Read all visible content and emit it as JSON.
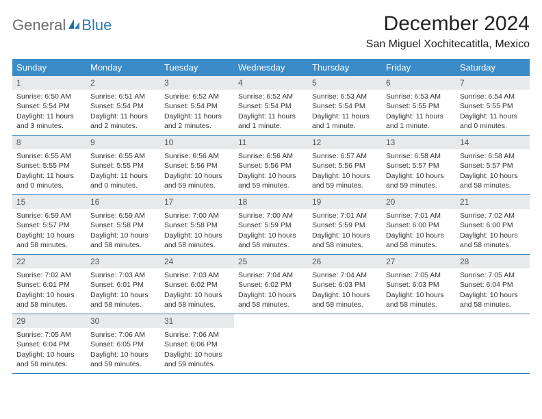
{
  "logo": {
    "part1": "General",
    "part2": "Blue"
  },
  "title": "December 2024",
  "location": "San Miguel Xochitecatitla, Mexico",
  "colors": {
    "headerBar": "#3b8bc9",
    "weekBorder": "#2b7bbd",
    "dayNumBg": "#e8e9ea",
    "logoBlue": "#2b7bbd",
    "logoGray": "#6b6b6b"
  },
  "weekdays": [
    "Sunday",
    "Monday",
    "Tuesday",
    "Wednesday",
    "Thursday",
    "Friday",
    "Saturday"
  ],
  "weeks": [
    [
      {
        "n": "1",
        "sunrise": "6:50 AM",
        "sunset": "5:54 PM",
        "daylight": "11 hours and 3 minutes."
      },
      {
        "n": "2",
        "sunrise": "6:51 AM",
        "sunset": "5:54 PM",
        "daylight": "11 hours and 2 minutes."
      },
      {
        "n": "3",
        "sunrise": "6:52 AM",
        "sunset": "5:54 PM",
        "daylight": "11 hours and 2 minutes."
      },
      {
        "n": "4",
        "sunrise": "6:52 AM",
        "sunset": "5:54 PM",
        "daylight": "11 hours and 1 minute."
      },
      {
        "n": "5",
        "sunrise": "6:53 AM",
        "sunset": "5:54 PM",
        "daylight": "11 hours and 1 minute."
      },
      {
        "n": "6",
        "sunrise": "6:53 AM",
        "sunset": "5:55 PM",
        "daylight": "11 hours and 1 minute."
      },
      {
        "n": "7",
        "sunrise": "6:54 AM",
        "sunset": "5:55 PM",
        "daylight": "11 hours and 0 minutes."
      }
    ],
    [
      {
        "n": "8",
        "sunrise": "6:55 AM",
        "sunset": "5:55 PM",
        "daylight": "11 hours and 0 minutes."
      },
      {
        "n": "9",
        "sunrise": "6:55 AM",
        "sunset": "5:55 PM",
        "daylight": "11 hours and 0 minutes."
      },
      {
        "n": "10",
        "sunrise": "6:56 AM",
        "sunset": "5:56 PM",
        "daylight": "10 hours and 59 minutes."
      },
      {
        "n": "11",
        "sunrise": "6:56 AM",
        "sunset": "5:56 PM",
        "daylight": "10 hours and 59 minutes."
      },
      {
        "n": "12",
        "sunrise": "6:57 AM",
        "sunset": "5:56 PM",
        "daylight": "10 hours and 59 minutes."
      },
      {
        "n": "13",
        "sunrise": "6:58 AM",
        "sunset": "5:57 PM",
        "daylight": "10 hours and 59 minutes."
      },
      {
        "n": "14",
        "sunrise": "6:58 AM",
        "sunset": "5:57 PM",
        "daylight": "10 hours and 58 minutes."
      }
    ],
    [
      {
        "n": "15",
        "sunrise": "6:59 AM",
        "sunset": "5:57 PM",
        "daylight": "10 hours and 58 minutes."
      },
      {
        "n": "16",
        "sunrise": "6:59 AM",
        "sunset": "5:58 PM",
        "daylight": "10 hours and 58 minutes."
      },
      {
        "n": "17",
        "sunrise": "7:00 AM",
        "sunset": "5:58 PM",
        "daylight": "10 hours and 58 minutes."
      },
      {
        "n": "18",
        "sunrise": "7:00 AM",
        "sunset": "5:59 PM",
        "daylight": "10 hours and 58 minutes."
      },
      {
        "n": "19",
        "sunrise": "7:01 AM",
        "sunset": "5:59 PM",
        "daylight": "10 hours and 58 minutes."
      },
      {
        "n": "20",
        "sunrise": "7:01 AM",
        "sunset": "6:00 PM",
        "daylight": "10 hours and 58 minutes."
      },
      {
        "n": "21",
        "sunrise": "7:02 AM",
        "sunset": "6:00 PM",
        "daylight": "10 hours and 58 minutes."
      }
    ],
    [
      {
        "n": "22",
        "sunrise": "7:02 AM",
        "sunset": "6:01 PM",
        "daylight": "10 hours and 58 minutes."
      },
      {
        "n": "23",
        "sunrise": "7:03 AM",
        "sunset": "6:01 PM",
        "daylight": "10 hours and 58 minutes."
      },
      {
        "n": "24",
        "sunrise": "7:03 AM",
        "sunset": "6:02 PM",
        "daylight": "10 hours and 58 minutes."
      },
      {
        "n": "25",
        "sunrise": "7:04 AM",
        "sunset": "6:02 PM",
        "daylight": "10 hours and 58 minutes."
      },
      {
        "n": "26",
        "sunrise": "7:04 AM",
        "sunset": "6:03 PM",
        "daylight": "10 hours and 58 minutes."
      },
      {
        "n": "27",
        "sunrise": "7:05 AM",
        "sunset": "6:03 PM",
        "daylight": "10 hours and 58 minutes."
      },
      {
        "n": "28",
        "sunrise": "7:05 AM",
        "sunset": "6:04 PM",
        "daylight": "10 hours and 58 minutes."
      }
    ],
    [
      {
        "n": "29",
        "sunrise": "7:05 AM",
        "sunset": "6:04 PM",
        "daylight": "10 hours and 58 minutes."
      },
      {
        "n": "30",
        "sunrise": "7:06 AM",
        "sunset": "6:05 PM",
        "daylight": "10 hours and 59 minutes."
      },
      {
        "n": "31",
        "sunrise": "7:06 AM",
        "sunset": "6:06 PM",
        "daylight": "10 hours and 59 minutes."
      },
      null,
      null,
      null,
      null
    ]
  ],
  "labels": {
    "sunrise": "Sunrise:",
    "sunset": "Sunset:",
    "daylight": "Daylight:"
  }
}
